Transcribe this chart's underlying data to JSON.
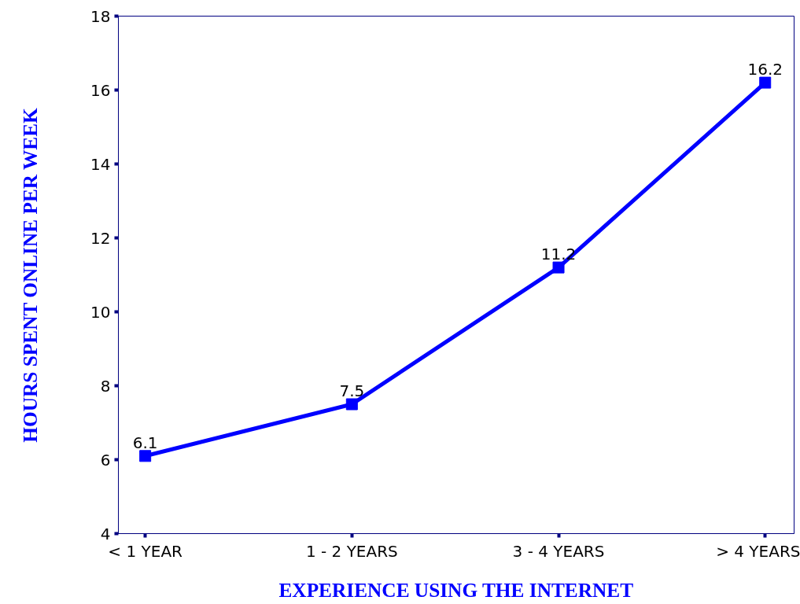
{
  "chart_data": {
    "type": "line",
    "xlabel": "EXPERIENCE USING THE INTERNET",
    "ylabel": "HOURS SPENT ONLINE PER WEEK",
    "categories": [
      "< 1 YEAR",
      "1 - 2 YEARS",
      "3 - 4 YEARS",
      "> 4 YEARS"
    ],
    "series": [
      {
        "color": "#0000ff",
        "values": [
          6.1,
          7.5,
          11.2,
          16.2
        ]
      }
    ],
    "ylim": [
      4,
      18
    ],
    "yticks": [
      4,
      6,
      8,
      10,
      12,
      14,
      16,
      18
    ],
    "data_labels": true,
    "marker": "square",
    "line_style": "solid"
  }
}
